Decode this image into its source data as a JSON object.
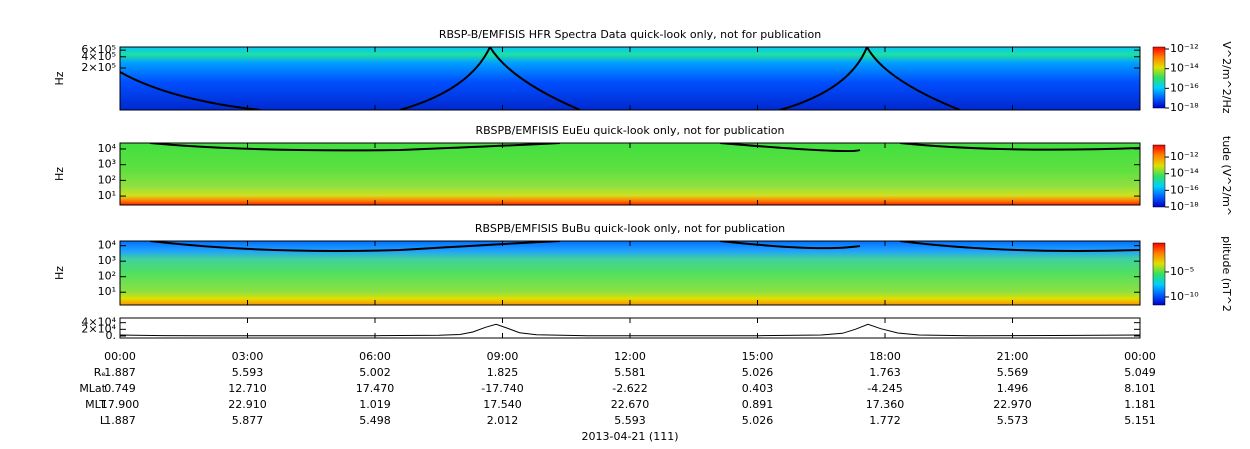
{
  "chart_data": [
    {
      "type": "spectrogram",
      "title": "RBSP-B/EMFISIS  HFR Spectra Data quick-look only, not for publication",
      "ylabel": "Hz",
      "log_y": true,
      "ylim": [
        15000,
        730000
      ],
      "yticks": [
        {
          "value": 200000,
          "label": "2×10⁵"
        },
        {
          "value": 400000,
          "label": "4×10⁵"
        },
        {
          "value": 600000,
          "label": "6×10⁵"
        }
      ],
      "colorbar": {
        "label": "V^2/m^2/Hz",
        "log": true,
        "lim": [
          1e-18,
          1.6e-12
        ],
        "ticks": [
          {
            "value": 1e-12,
            "label": "10⁻¹²"
          },
          {
            "value": 1e-14,
            "label": "10⁻¹⁴"
          },
          {
            "value": 1e-16,
            "label": "10⁻¹⁶"
          },
          {
            "value": 1e-18,
            "label": "10⁻¹⁸"
          }
        ]
      }
    },
    {
      "type": "spectrogram",
      "title": "RBSPB/EMFISIS  EuEu quick-look only, not for publication",
      "ylabel": "Hz",
      "log_y": true,
      "ylim": [
        2.7,
        24000
      ],
      "yticks": [
        {
          "value": 10,
          "label": "10¹"
        },
        {
          "value": 100,
          "label": "10²"
        },
        {
          "value": 1000,
          "label": "10³"
        },
        {
          "value": 10000,
          "label": "10⁴"
        }
      ],
      "colorbar": {
        "label": "tude (V^2/m^",
        "log": true,
        "lim": [
          1e-18,
          2.8e-11
        ],
        "ticks": [
          {
            "value": 1e-12,
            "label": "10⁻¹²"
          },
          {
            "value": 1e-14,
            "label": "10⁻¹⁴"
          },
          {
            "value": 1e-16,
            "label": "10⁻¹⁶"
          },
          {
            "value": 1e-18,
            "label": "10⁻¹⁸"
          }
        ]
      }
    },
    {
      "type": "spectrogram",
      "title": "RBSPB/EMFISIS  BuBu quick-look only, not for publication",
      "ylabel": "Hz",
      "log_y": true,
      "ylim": [
        1.5,
        20000
      ],
      "yticks": [
        {
          "value": 10,
          "label": "10¹"
        },
        {
          "value": 100,
          "label": "10²"
        },
        {
          "value": 1000,
          "label": "10³"
        },
        {
          "value": 10000,
          "label": "10⁴"
        }
      ],
      "colorbar": {
        "label": "plitude (nT^2",
        "log": true,
        "lim": [
          2.5e-12,
          6
        ],
        "ticks": [
          {
            "value": 1e-05,
            "label": "10⁻⁵"
          },
          {
            "value": 1e-10,
            "label": "10⁻¹⁰"
          }
        ]
      }
    },
    {
      "type": "line",
      "color": "#000000",
      "ylim": [
        -6000,
        54000
      ],
      "yticks": [
        {
          "value": 0,
          "label": "0."
        },
        {
          "value": 20000,
          "label": "2×10⁴"
        },
        {
          "value": 40000,
          "label": "4×10⁴"
        }
      ],
      "xlim": [
        0,
        24
      ],
      "xticks": [
        {
          "value": 0,
          "label": "00:00"
        },
        {
          "value": 3,
          "label": "03:00"
        },
        {
          "value": 6,
          "label": "06:00"
        },
        {
          "value": 9,
          "label": "09:00"
        },
        {
          "value": 12,
          "label": "12:00"
        },
        {
          "value": 15,
          "label": "15:00"
        },
        {
          "value": 18,
          "label": "18:00"
        },
        {
          "value": 21,
          "label": "21:00"
        },
        {
          "value": 24,
          "label": "00:00"
        }
      ],
      "x": [
        0,
        1,
        2,
        4,
        6,
        7.5,
        8,
        8.3,
        8.6,
        8.85,
        9.1,
        9.4,
        9.8,
        11,
        13,
        15,
        16.5,
        17,
        17.3,
        17.6,
        17.9,
        18.3,
        18.8,
        20,
        22,
        24
      ],
      "values": [
        3000,
        1200,
        700,
        500,
        800,
        2000,
        4500,
        12000,
        26000,
        35000,
        24000,
        10000,
        3500,
        900,
        500,
        900,
        3000,
        8000,
        20000,
        35000,
        22000,
        9000,
        3000,
        900,
        1500,
        3000
      ]
    }
  ],
  "colormap": [
    "#0000c8",
    "#0060ff",
    "#00d0ff",
    "#30e060",
    "#e0e000",
    "#ff8000",
    "#ff0000"
  ],
  "ephemeris": [
    {
      "label": "Rₑ",
      "values": [
        "1.887",
        "5.593",
        "5.002",
        "1.825",
        "5.581",
        "5.026",
        "1.763",
        "5.569",
        "5.049"
      ]
    },
    {
      "label": "MLat",
      "values": [
        "0.749",
        "12.710",
        "17.470",
        "-17.740",
        "-2.622",
        "0.403",
        "-4.245",
        "1.496",
        "8.101"
      ]
    },
    {
      "label": "MLT",
      "values": [
        "17.900",
        "22.910",
        "1.019",
        "17.540",
        "22.670",
        "0.891",
        "17.360",
        "22.970",
        "1.181"
      ]
    },
    {
      "label": "L",
      "values": [
        "1.887",
        "5.877",
        "5.498",
        "2.012",
        "5.593",
        "5.026",
        "1.772",
        "5.573",
        "5.151"
      ]
    }
  ],
  "date": "2013-04-21 (111)"
}
